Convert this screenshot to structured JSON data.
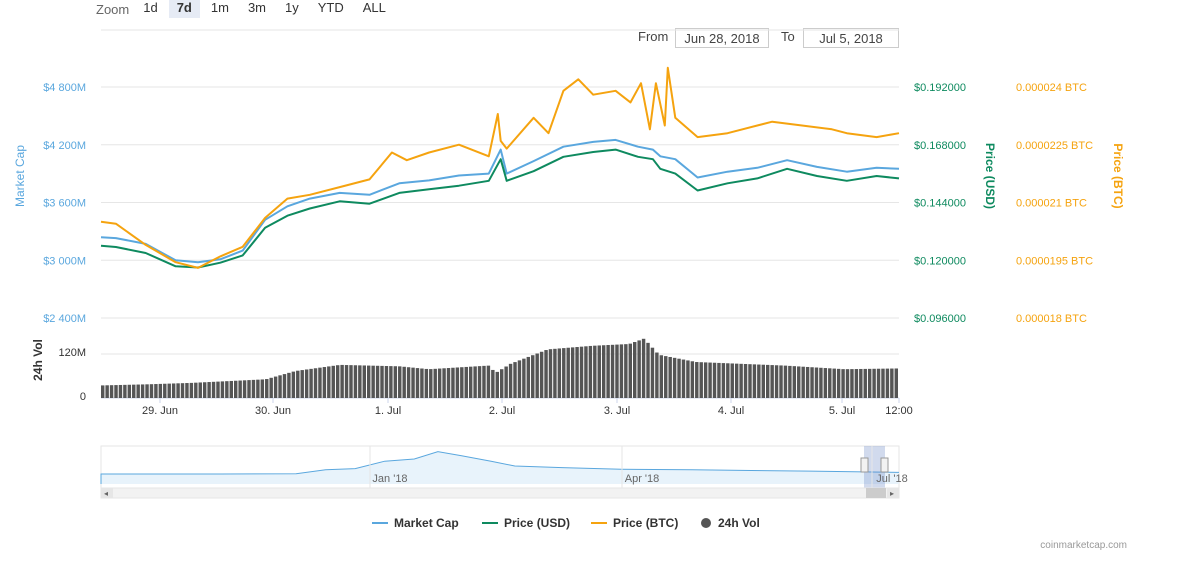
{
  "zoom": {
    "label": "Zoom",
    "buttons": [
      "1d",
      "7d",
      "1m",
      "3m",
      "1y",
      "YTD",
      "ALL"
    ],
    "active": "7d"
  },
  "range": {
    "from_label": "From",
    "from_value": "Jun 28, 2018",
    "to_label": "To",
    "to_value": "Jul 5, 2018"
  },
  "credit": "coinmarketcap.com",
  "colors": {
    "market_cap": "#5aa7de",
    "price_usd": "#0e8a5f",
    "price_btc": "#f5a30f",
    "volume": "#555555"
  },
  "chart_data": {
    "type": "line",
    "x_ticks": [
      "29. Jun",
      "30. Jun",
      "1. Jul",
      "2. Jul",
      "3. Jul",
      "4. Jul",
      "5. Jul",
      "12:00"
    ],
    "axes": {
      "market_cap": {
        "title": "Market Cap",
        "ticks": [
          "$2 400M",
          "$3 000M",
          "$3 600M",
          "$4 200M",
          "$4 800M"
        ],
        "ylim": [
          2400,
          4800
        ]
      },
      "price_usd": {
        "title": "Price (USD)",
        "ticks": [
          "$0.096000",
          "$0.120000",
          "$0.144000",
          "$0.168000",
          "$0.192000"
        ],
        "ylim": [
          0.096,
          0.192
        ]
      },
      "price_btc": {
        "title": "Price (BTC)",
        "ticks": [
          "0.000018 BTC",
          "0.0000195 BTC",
          "0.000021 BTC",
          "0.0000225 BTC",
          "0.000024 BTC"
        ],
        "ylim": [
          1.8e-05,
          2.4e-05
        ]
      },
      "volume": {
        "title": "24h Vol",
        "ticks": [
          "0",
          "120M"
        ],
        "ylim": [
          0,
          200
        ]
      }
    },
    "series": [
      {
        "name": "Market Cap",
        "axis": "market_cap",
        "x": [
          0,
          0.1,
          0.3,
          0.5,
          0.65,
          0.8,
          0.95,
          1.1,
          1.25,
          1.4,
          1.6,
          1.8,
          2.0,
          2.2,
          2.4,
          2.6,
          2.68,
          2.72,
          2.9,
          3.1,
          3.3,
          3.45,
          3.6,
          3.7,
          3.75,
          3.85,
          4.0,
          4.2,
          4.4,
          4.6,
          4.8,
          5.0,
          5.2,
          5.35
        ],
        "values": [
          3240,
          3230,
          3170,
          3000,
          2980,
          3010,
          3100,
          3420,
          3560,
          3640,
          3700,
          3680,
          3800,
          3830,
          3880,
          3900,
          4150,
          3900,
          4030,
          4180,
          4230,
          4250,
          4180,
          4150,
          4080,
          4050,
          3860,
          3920,
          3960,
          4040,
          3970,
          3920,
          3960,
          3950
        ]
      },
      {
        "name": "Price (USD)",
        "axis": "price_usd",
        "x": [
          0,
          0.1,
          0.3,
          0.5,
          0.65,
          0.8,
          0.95,
          1.1,
          1.25,
          1.4,
          1.6,
          1.8,
          2.0,
          2.2,
          2.4,
          2.6,
          2.68,
          2.72,
          2.9,
          3.1,
          3.3,
          3.45,
          3.6,
          3.7,
          3.75,
          3.85,
          4.0,
          4.2,
          4.4,
          4.6,
          4.8,
          5.0,
          5.2,
          5.35
        ],
        "values": [
          0.126,
          0.1255,
          0.123,
          0.1175,
          0.117,
          0.119,
          0.122,
          0.1335,
          0.1385,
          0.1415,
          0.1445,
          0.1435,
          0.148,
          0.1495,
          0.151,
          0.153,
          0.162,
          0.153,
          0.157,
          0.163,
          0.165,
          0.166,
          0.163,
          0.162,
          0.158,
          0.156,
          0.149,
          0.152,
          0.154,
          0.158,
          0.155,
          0.153,
          0.155,
          0.154
        ]
      },
      {
        "name": "Price (BTC)",
        "axis": "price_btc",
        "x": [
          0,
          0.1,
          0.3,
          0.5,
          0.65,
          0.8,
          0.95,
          1.1,
          1.25,
          1.4,
          1.6,
          1.8,
          1.95,
          2.05,
          2.2,
          2.4,
          2.6,
          2.66,
          2.68,
          2.72,
          2.9,
          3.0,
          3.1,
          3.2,
          3.3,
          3.45,
          3.55,
          3.62,
          3.68,
          3.72,
          3.78,
          3.8,
          3.85,
          4.0,
          4.2,
          4.4,
          4.5,
          4.7,
          4.9,
          5.0,
          5.2,
          5.35
        ],
        "values": [
          2.05e-05,
          2.045e-05,
          1.99e-05,
          1.945e-05,
          1.93e-05,
          1.96e-05,
          1.985e-05,
          2.06e-05,
          2.11e-05,
          2.12e-05,
          2.14e-05,
          2.16e-05,
          2.23e-05,
          2.21e-05,
          2.23e-05,
          2.25e-05,
          2.22e-05,
          2.33e-05,
          2.26e-05,
          2.24e-05,
          2.32e-05,
          2.28e-05,
          2.39e-05,
          2.42e-05,
          2.38e-05,
          2.39e-05,
          2.36e-05,
          2.41e-05,
          2.29e-05,
          2.41e-05,
          2.3e-05,
          2.45e-05,
          2.32e-05,
          2.27e-05,
          2.28e-05,
          2.3e-05,
          2.31e-05,
          2.3e-05,
          2.29e-05,
          2.28e-05,
          2.27e-05,
          2.28e-05
        ]
      },
      {
        "name": "24h Vol",
        "axis": "volume",
        "type": "bar",
        "x": [
          0,
          0.3,
          0.6,
          0.9,
          1.1,
          1.3,
          1.6,
          1.8,
          2.0,
          2.2,
          2.4,
          2.6,
          2.65,
          2.75,
          3.0,
          3.3,
          3.55,
          3.65,
          3.75,
          4.0,
          4.3,
          4.6,
          5.0,
          5.35
        ],
        "values": [
          35,
          38,
          42,
          48,
          52,
          75,
          92,
          90,
          88,
          80,
          85,
          90,
          70,
          95,
          135,
          145,
          150,
          165,
          120,
          100,
          95,
          90,
          80,
          82
        ]
      }
    ],
    "navigator": {
      "ticks": [
        "Jan '18",
        "Apr '18",
        "Jul '18"
      ]
    },
    "legend": [
      "Market Cap",
      "Price (USD)",
      "Price (BTC)",
      "24h Vol"
    ]
  }
}
